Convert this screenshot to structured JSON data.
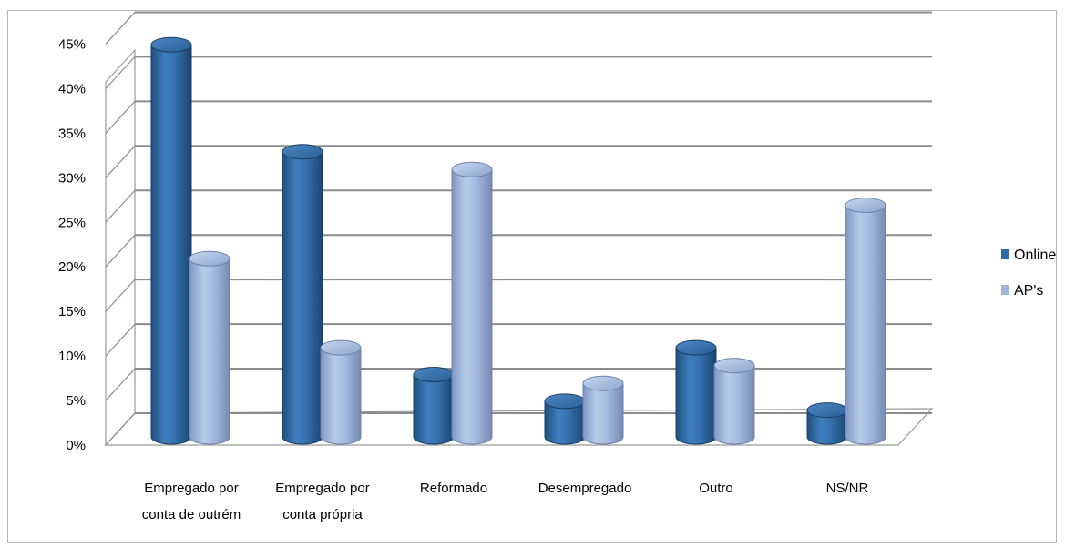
{
  "chart_data": {
    "type": "bar",
    "style": "3d-cylinder",
    "categories": [
      [
        "Empregado por",
        "conta de outrém"
      ],
      [
        "Empregado por",
        "conta própria"
      ],
      [
        "Reformado"
      ],
      [
        "Desempregado"
      ],
      [
        "Outro"
      ],
      [
        "NS/NR"
      ]
    ],
    "series": [
      {
        "name": "Online",
        "color": "#2e6aa6",
        "values": [
          44,
          32,
          7,
          4,
          10,
          3
        ]
      },
      {
        "name": "AP's",
        "color": "#9fb5dc",
        "values": [
          20,
          10,
          30,
          6,
          8,
          26
        ]
      }
    ],
    "ylim": [
      0,
      45
    ],
    "yticks": [
      "0%",
      "5%",
      "10%",
      "15%",
      "20%",
      "25%",
      "30%",
      "35%",
      "40%",
      "45%"
    ],
    "grid": true,
    "legend_position": "right"
  }
}
